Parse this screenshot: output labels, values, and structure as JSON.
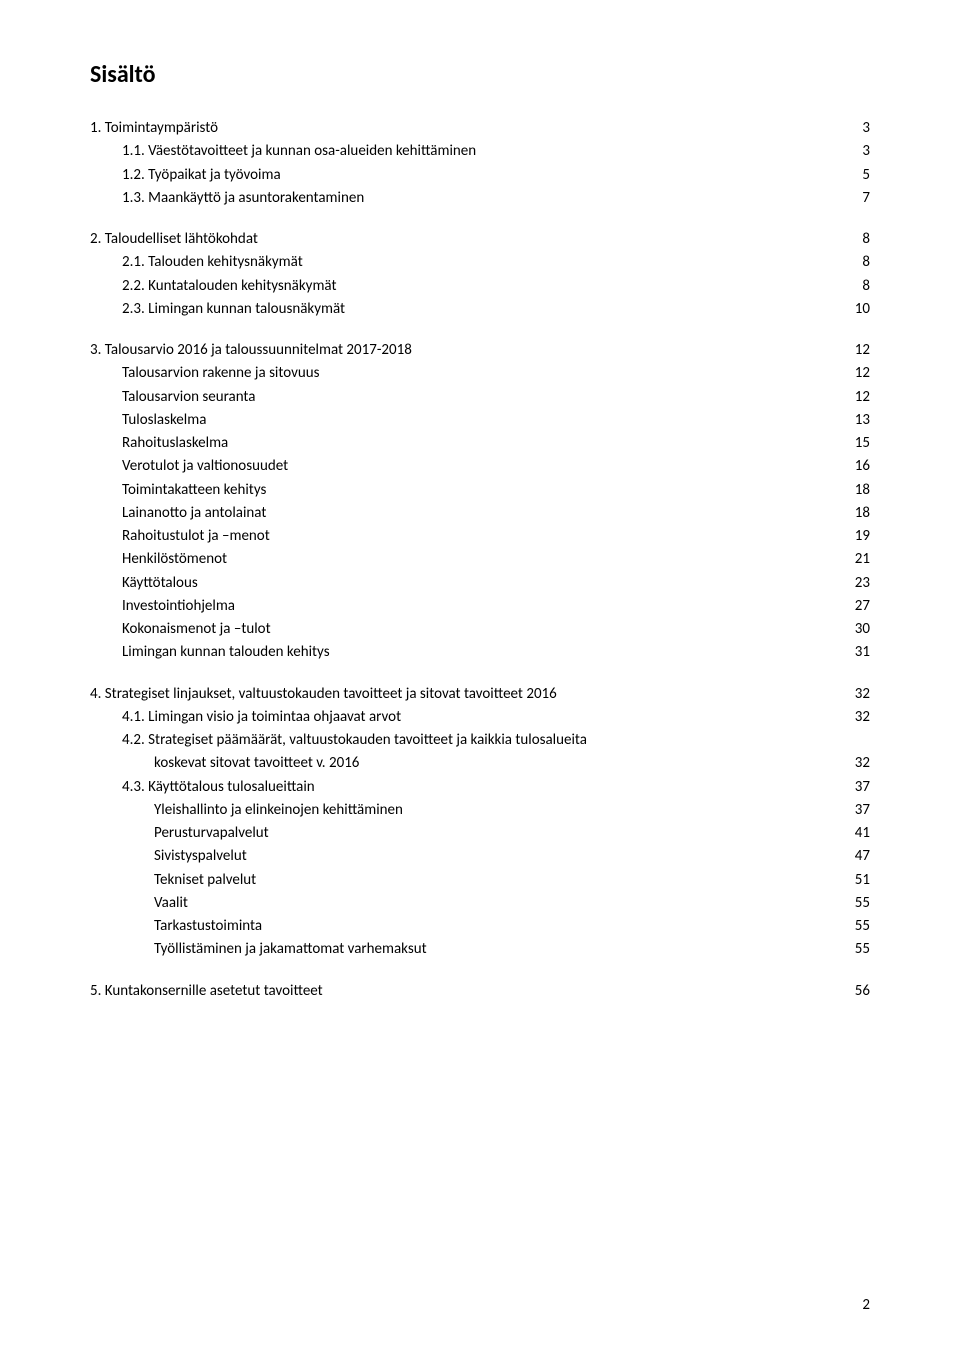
{
  "title": "Sisältö",
  "page_number": "2",
  "font": {
    "body_size_pt": 11,
    "title_size_pt": 18,
    "title_weight": "bold"
  },
  "colors": {
    "text": "#000000",
    "background": "#ffffff"
  },
  "toc": [
    {
      "type": "entry",
      "level": 0,
      "text": "1.   Toimintaympäristö",
      "page": "3"
    },
    {
      "type": "entry",
      "level": 1,
      "text": "1.1. Väestötavoitteet ja kunnan osa-alueiden kehittäminen",
      "page": "3"
    },
    {
      "type": "entry",
      "level": 1,
      "text": "1.2. Työpaikat ja työvoima",
      "page": "5"
    },
    {
      "type": "entry",
      "level": 1,
      "text": "1.3. Maankäyttö ja asuntorakentaminen",
      "page": "7"
    },
    {
      "type": "gap"
    },
    {
      "type": "entry",
      "level": 0,
      "text": "2.   Taloudelliset lähtökohdat",
      "page": "8"
    },
    {
      "type": "entry",
      "level": 1,
      "text": "2.1. Talouden kehitysnäkymät",
      "page": "8"
    },
    {
      "type": "entry",
      "level": 1,
      "text": "2.2. Kuntatalouden kehitysnäkymät",
      "page": "8"
    },
    {
      "type": "entry",
      "level": 1,
      "text": "2.3. Limingan kunnan talousnäkymät",
      "page": "10"
    },
    {
      "type": "gap"
    },
    {
      "type": "entry",
      "level": 0,
      "text": "3.   Talousarvio 2016 ja taloussuunnitelmat 2017-2018",
      "page": "12"
    },
    {
      "type": "entry",
      "level": 1,
      "text": "Talousarvion rakenne ja sitovuus",
      "page": "12"
    },
    {
      "type": "entry",
      "level": 1,
      "text": "Talousarvion seuranta",
      "page": "12"
    },
    {
      "type": "entry",
      "level": 1,
      "text": "Tuloslaskelma",
      "page": "13"
    },
    {
      "type": "entry",
      "level": 1,
      "text": "Rahoituslaskelma",
      "page": "15"
    },
    {
      "type": "entry",
      "level": 1,
      "text": "Verotulot ja valtionosuudet",
      "page": "16"
    },
    {
      "type": "entry",
      "level": 1,
      "text": "Toimintakatteen kehitys",
      "page": "18"
    },
    {
      "type": "entry",
      "level": 1,
      "text": "Lainanotto ja antolainat",
      "page": "18"
    },
    {
      "type": "entry",
      "level": 1,
      "text": "Rahoitustulot ja –menot",
      "page": "19"
    },
    {
      "type": "entry",
      "level": 1,
      "text": "Henkilöstömenot",
      "page": "21"
    },
    {
      "type": "entry",
      "level": 1,
      "text": "Käyttötalous",
      "page": "23"
    },
    {
      "type": "entry",
      "level": 1,
      "text": "Investointiohjelma",
      "page": "27"
    },
    {
      "type": "entry",
      "level": 1,
      "text": "Kokonaismenot ja –tulot",
      "page": "30"
    },
    {
      "type": "entry",
      "level": 1,
      "text": "Limingan kunnan talouden kehitys",
      "page": "31"
    },
    {
      "type": "gap"
    },
    {
      "type": "entry",
      "level": 0,
      "text": "4.   Strategiset linjaukset, valtuustokauden tavoitteet ja sitovat tavoitteet 2016",
      "page": "32"
    },
    {
      "type": "entry",
      "level": 1,
      "text": "4.1. Limingan visio ja toimintaa ohjaavat arvot",
      "page": "32"
    },
    {
      "type": "entry",
      "level": 1,
      "text": "4.2. Strategiset päämäärät, valtuustokauden tavoitteet ja kaikkia tulosalueita",
      "page": ""
    },
    {
      "type": "entry",
      "level": 2,
      "text": "koskevat sitovat tavoitteet v. 2016",
      "page": "32"
    },
    {
      "type": "entry",
      "level": 1,
      "text": "4.3. Käyttötalous tulosalueittain",
      "page": "37"
    },
    {
      "type": "entry",
      "level": 2,
      "text": "Yleishallinto ja elinkeinojen kehittäminen",
      "page": "37"
    },
    {
      "type": "entry",
      "level": 2,
      "text": "Perusturvapalvelut",
      "page": "41"
    },
    {
      "type": "entry",
      "level": 2,
      "text": "Sivistyspalvelut",
      "page": "47"
    },
    {
      "type": "entry",
      "level": 2,
      "text": "Tekniset palvelut",
      "page": "51"
    },
    {
      "type": "entry",
      "level": 2,
      "text": "Vaalit",
      "page": "55"
    },
    {
      "type": "entry",
      "level": 2,
      "text": "Tarkastustoiminta",
      "page": "55"
    },
    {
      "type": "entry",
      "level": 2,
      "text": "Työllistäminen ja jakamattomat varhemaksut",
      "page": "55"
    },
    {
      "type": "gap"
    },
    {
      "type": "entry",
      "level": 0,
      "text": "5.   Kuntakonsernille asetetut tavoitteet",
      "page": "56"
    }
  ]
}
